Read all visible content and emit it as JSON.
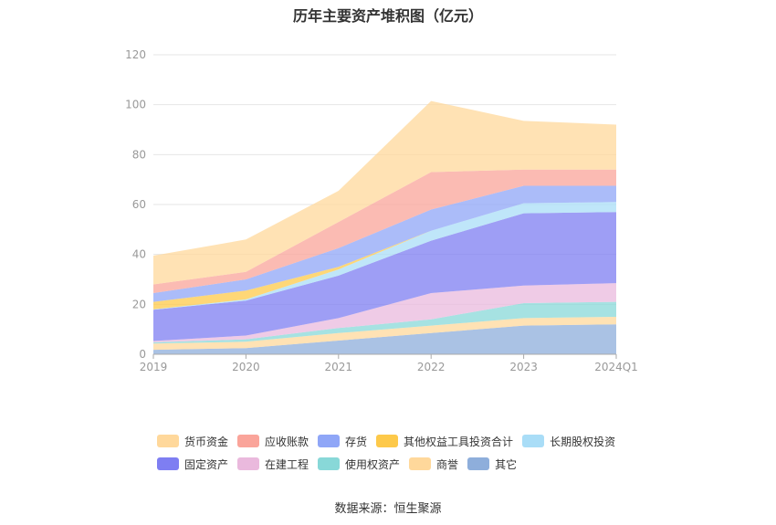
{
  "chart_data": {
    "type": "area",
    "stacked": true,
    "title": "历年主要资产堆积图（亿元）",
    "categories": [
      "2019",
      "2020",
      "2021",
      "2022",
      "2023",
      "2024Q1"
    ],
    "ylim": [
      0,
      120
    ],
    "yticks": [
      0,
      20,
      40,
      60,
      80,
      100,
      120
    ],
    "grid": true,
    "legend_position": "bottom",
    "series": [
      {
        "name": "其它",
        "color": "#8eaedb",
        "values": [
          1.8,
          2.5,
          5.5,
          8.5,
          11.5,
          12.0
        ]
      },
      {
        "name": "商誉",
        "color": "#ffd89b",
        "values": [
          2.5,
          2.5,
          3.0,
          3.0,
          3.0,
          3.0
        ]
      },
      {
        "name": "使用权资产",
        "color": "#88d8d8",
        "values": [
          0.5,
          1.0,
          2.0,
          2.5,
          6.0,
          6.0
        ]
      },
      {
        "name": "在建工程",
        "color": "#eab9dd",
        "values": [
          0.5,
          1.5,
          4.0,
          10.5,
          7.0,
          7.5
        ]
      },
      {
        "name": "固定资产",
        "color": "#7e7ef2",
        "values": [
          12.5,
          14.0,
          17.0,
          21.0,
          29.0,
          28.5
        ]
      },
      {
        "name": "长期股权投资",
        "color": "#a9ddf7",
        "values": [
          0.2,
          0.5,
          2.5,
          4.0,
          4.0,
          4.0
        ]
      },
      {
        "name": "其他权益工具投资合计",
        "color": "#fdc94a",
        "values": [
          3.0,
          3.5,
          1.0,
          0.0,
          0.0,
          0.0
        ]
      },
      {
        "name": "存货",
        "color": "#8fa6f7",
        "values": [
          3.5,
          4.5,
          7.5,
          8.5,
          7.0,
          6.5
        ]
      },
      {
        "name": "应收账款",
        "color": "#faa49a",
        "values": [
          3.5,
          3.0,
          10.5,
          15.0,
          6.5,
          6.5
        ]
      },
      {
        "name": "货币资金",
        "color": "#ffd89b",
        "values": [
          11.5,
          13.0,
          12.5,
          28.5,
          19.5,
          18.0
        ]
      }
    ],
    "legend": [
      {
        "name": "货币资金",
        "color": "#ffd89b"
      },
      {
        "name": "应收账款",
        "color": "#faa49a"
      },
      {
        "name": "存货",
        "color": "#8fa6f7"
      },
      {
        "name": "其他权益工具投资合计",
        "color": "#fdc94a"
      },
      {
        "name": "长期股权投资",
        "color": "#a9ddf7"
      },
      {
        "name": "固定资产",
        "color": "#7e7ef2"
      },
      {
        "name": "在建工程",
        "color": "#eab9dd"
      },
      {
        "name": "使用权资产",
        "color": "#88d8d8"
      },
      {
        "name": "商誉",
        "color": "#ffd89b"
      },
      {
        "name": "其它",
        "color": "#8eaedb"
      }
    ],
    "source": "数据来源：恒生聚源"
  }
}
